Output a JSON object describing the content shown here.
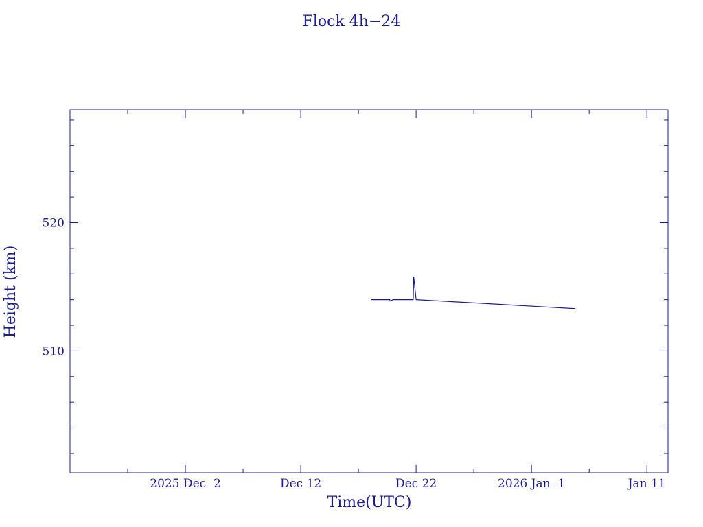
{
  "chart_data": {
    "type": "line",
    "title": "Flock 4h−24",
    "xlabel": "Time(UTC)",
    "ylabel": "Height (km)",
    "color": "#1c1c8c",
    "x": [
      "2025-12-18T03:00",
      "2025-12-19T17:00",
      "2025-12-19T18:00",
      "2025-12-20T00:00",
      "2025-12-21T18:00",
      "2025-12-21T19:00",
      "2025-12-22T00:00",
      "2025-12-27T23:00",
      "2026-01-04T19:00"
    ],
    "values": [
      514.0,
      514.0,
      513.9,
      514.0,
      514.0,
      515.8,
      514.0,
      513.7,
      513.3
    ],
    "xlim": [
      "2025-11-22T00:00",
      "2026-01-12T20:00"
    ],
    "xticks": [
      {
        "value": "2025-12-02T00:00",
        "label": "2025 Dec  2"
      },
      {
        "value": "2025-12-12T00:00",
        "label": "Dec 12"
      },
      {
        "value": "2025-12-22T00:00",
        "label": "Dec 22"
      },
      {
        "value": "2026-01-01T00:00",
        "label": "2026 Jan  1"
      },
      {
        "value": "2026-01-11T00:00",
        "label": "Jan 11"
      }
    ],
    "xminorticks": [
      "2025-11-27T00:00",
      "2025-12-07T00:00",
      "2025-12-17T00:00",
      "2025-12-27T00:00",
      "2026-01-06T00:00"
    ],
    "ylim": [
      500.5,
      528.8
    ],
    "yticks": [
      510,
      520
    ],
    "yminorticks": [
      502,
      504,
      506,
      508,
      512,
      514,
      516,
      518,
      522,
      524,
      526,
      528
    ]
  }
}
